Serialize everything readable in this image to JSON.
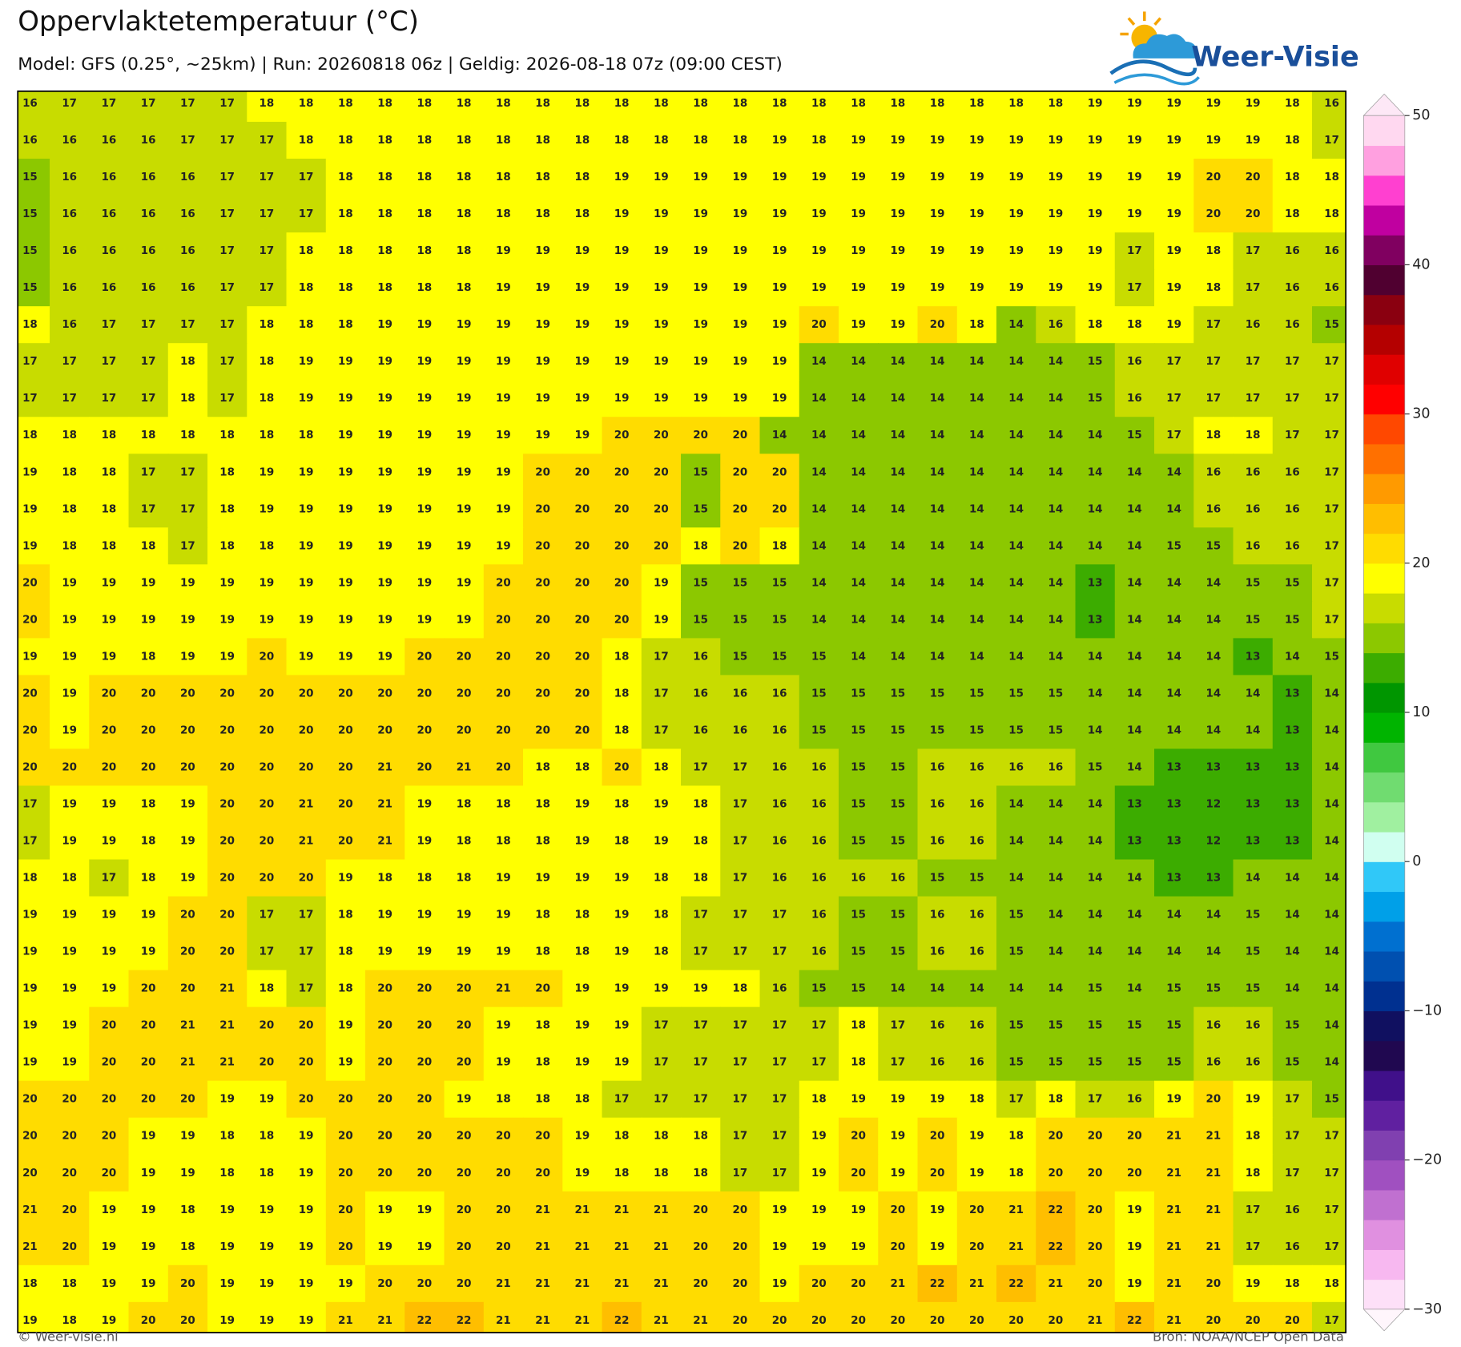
{
  "header": {
    "title": "Oppervlaktetemperatuur (°C)",
    "subtitle": "Model: GFS (0.25°, ~25km)  |  Run: 20260818 06z  |  Geldig: 2026-08-18 07z (09:00 CEST)"
  },
  "logo": {
    "text": "Weer-Visie"
  },
  "grid": {
    "rows": [
      [
        16,
        17,
        17,
        17,
        17,
        17,
        18,
        18,
        18,
        18,
        18,
        18,
        18,
        18,
        18,
        18,
        18,
        18,
        18,
        18,
        18,
        18,
        18,
        18,
        18,
        18,
        18,
        19,
        19,
        19,
        19,
        19,
        18,
        16
      ],
      [
        16,
        16,
        16,
        16,
        17,
        17,
        17,
        18,
        18,
        18,
        18,
        18,
        18,
        18,
        18,
        18,
        18,
        18,
        18,
        19,
        18,
        19,
        19,
        19,
        19,
        19,
        19,
        19,
        19,
        19,
        19,
        19,
        18,
        17
      ],
      [
        15,
        16,
        16,
        16,
        16,
        17,
        17,
        17,
        18,
        18,
        18,
        18,
        18,
        18,
        18,
        19,
        19,
        19,
        19,
        19,
        19,
        19,
        19,
        19,
        19,
        19,
        19,
        19,
        19,
        19,
        20,
        20,
        18,
        18
      ],
      [
        15,
        16,
        16,
        16,
        16,
        17,
        17,
        17,
        18,
        18,
        18,
        18,
        18,
        18,
        18,
        19,
        19,
        19,
        19,
        19,
        19,
        19,
        19,
        19,
        19,
        19,
        19,
        19,
        19,
        19,
        20,
        20,
        18,
        18
      ],
      [
        15,
        16,
        16,
        16,
        16,
        17,
        17,
        18,
        18,
        18,
        18,
        18,
        19,
        19,
        19,
        19,
        19,
        19,
        19,
        19,
        19,
        19,
        19,
        19,
        19,
        19,
        19,
        19,
        17,
        19,
        18,
        17,
        16,
        16
      ],
      [
        15,
        16,
        16,
        16,
        16,
        17,
        17,
        18,
        18,
        18,
        18,
        18,
        19,
        19,
        19,
        19,
        19,
        19,
        19,
        19,
        19,
        19,
        19,
        19,
        19,
        19,
        19,
        19,
        17,
        19,
        18,
        17,
        16,
        16
      ],
      [
        18,
        16,
        17,
        17,
        17,
        17,
        18,
        18,
        18,
        19,
        19,
        19,
        19,
        19,
        19,
        19,
        19,
        19,
        19,
        19,
        20,
        19,
        19,
        20,
        18,
        14,
        16,
        18,
        18,
        19,
        17,
        16,
        16,
        15
      ],
      [
        17,
        17,
        17,
        17,
        18,
        17,
        18,
        19,
        19,
        19,
        19,
        19,
        19,
        19,
        19,
        19,
        19,
        19,
        19,
        19,
        14,
        14,
        14,
        14,
        14,
        14,
        14,
        15,
        16,
        17,
        17,
        17,
        17,
        17
      ],
      [
        17,
        17,
        17,
        17,
        18,
        17,
        18,
        19,
        19,
        19,
        19,
        19,
        19,
        19,
        19,
        19,
        19,
        19,
        19,
        19,
        14,
        14,
        14,
        14,
        14,
        14,
        14,
        15,
        16,
        17,
        17,
        17,
        17,
        17
      ],
      [
        18,
        18,
        18,
        18,
        18,
        18,
        18,
        18,
        19,
        19,
        19,
        19,
        19,
        19,
        19,
        20,
        20,
        20,
        20,
        14,
        14,
        14,
        14,
        14,
        14,
        14,
        14,
        14,
        15,
        17,
        18,
        18,
        17,
        17
      ],
      [
        19,
        18,
        18,
        17,
        17,
        18,
        19,
        19,
        19,
        19,
        19,
        19,
        19,
        20,
        20,
        20,
        20,
        15,
        20,
        20,
        14,
        14,
        14,
        14,
        14,
        14,
        14,
        14,
        14,
        14,
        16,
        16,
        16,
        17
      ],
      [
        19,
        18,
        18,
        17,
        17,
        18,
        19,
        19,
        19,
        19,
        19,
        19,
        19,
        20,
        20,
        20,
        20,
        15,
        20,
        20,
        14,
        14,
        14,
        14,
        14,
        14,
        14,
        14,
        14,
        14,
        16,
        16,
        16,
        17
      ],
      [
        19,
        18,
        18,
        18,
        17,
        18,
        18,
        19,
        19,
        19,
        19,
        19,
        19,
        20,
        20,
        20,
        20,
        18,
        20,
        18,
        14,
        14,
        14,
        14,
        14,
        14,
        14,
        14,
        14,
        15,
        15,
        16,
        16,
        17
      ],
      [
        20,
        19,
        19,
        19,
        19,
        19,
        19,
        19,
        19,
        19,
        19,
        19,
        20,
        20,
        20,
        20,
        19,
        15,
        15,
        15,
        14,
        14,
        14,
        14,
        14,
        14,
        14,
        13,
        14,
        14,
        14,
        15,
        15,
        17
      ],
      [
        20,
        19,
        19,
        19,
        19,
        19,
        19,
        19,
        19,
        19,
        19,
        19,
        20,
        20,
        20,
        20,
        19,
        15,
        15,
        15,
        14,
        14,
        14,
        14,
        14,
        14,
        14,
        13,
        14,
        14,
        14,
        15,
        15,
        17
      ],
      [
        19,
        19,
        19,
        18,
        19,
        19,
        20,
        19,
        19,
        19,
        20,
        20,
        20,
        20,
        20,
        18,
        17,
        16,
        15,
        15,
        15,
        14,
        14,
        14,
        14,
        14,
        14,
        14,
        14,
        14,
        14,
        13,
        14,
        15
      ],
      [
        20,
        19,
        20,
        20,
        20,
        20,
        20,
        20,
        20,
        20,
        20,
        20,
        20,
        20,
        20,
        18,
        17,
        16,
        16,
        16,
        15,
        15,
        15,
        15,
        15,
        15,
        15,
        14,
        14,
        14,
        14,
        14,
        13,
        14
      ],
      [
        20,
        19,
        20,
        20,
        20,
        20,
        20,
        20,
        20,
        20,
        20,
        20,
        20,
        20,
        20,
        18,
        17,
        16,
        16,
        16,
        15,
        15,
        15,
        15,
        15,
        15,
        15,
        14,
        14,
        14,
        14,
        14,
        13,
        14
      ],
      [
        20,
        20,
        20,
        20,
        20,
        20,
        20,
        20,
        20,
        21,
        20,
        21,
        20,
        18,
        18,
        20,
        18,
        17,
        17,
        16,
        16,
        15,
        15,
        16,
        16,
        16,
        16,
        15,
        14,
        13,
        13,
        13,
        13,
        14
      ],
      [
        17,
        19,
        19,
        18,
        19,
        20,
        20,
        21,
        20,
        21,
        19,
        18,
        18,
        18,
        19,
        18,
        19,
        18,
        17,
        16,
        16,
        15,
        15,
        16,
        16,
        14,
        14,
        14,
        13,
        13,
        12,
        13,
        13,
        14
      ],
      [
        17,
        19,
        19,
        18,
        19,
        20,
        20,
        21,
        20,
        21,
        19,
        18,
        18,
        18,
        19,
        18,
        19,
        18,
        17,
        16,
        16,
        15,
        15,
        16,
        16,
        14,
        14,
        14,
        13,
        13,
        12,
        13,
        13,
        14
      ],
      [
        18,
        18,
        17,
        18,
        19,
        20,
        20,
        20,
        19,
        18,
        18,
        18,
        19,
        19,
        19,
        19,
        18,
        18,
        17,
        16,
        16,
        16,
        16,
        15,
        15,
        14,
        14,
        14,
        14,
        13,
        13,
        14,
        14,
        14
      ],
      [
        19,
        19,
        19,
        19,
        20,
        20,
        17,
        17,
        18,
        19,
        19,
        19,
        19,
        18,
        18,
        19,
        18,
        17,
        17,
        17,
        16,
        15,
        15,
        16,
        16,
        15,
        14,
        14,
        14,
        14,
        14,
        15,
        14,
        14
      ],
      [
        19,
        19,
        19,
        19,
        20,
        20,
        17,
        17,
        18,
        19,
        19,
        19,
        19,
        18,
        18,
        19,
        18,
        17,
        17,
        17,
        16,
        15,
        15,
        16,
        16,
        15,
        14,
        14,
        14,
        14,
        14,
        15,
        14,
        14
      ],
      [
        19,
        19,
        19,
        20,
        20,
        21,
        18,
        17,
        18,
        20,
        20,
        20,
        21,
        20,
        19,
        19,
        19,
        19,
        18,
        16,
        15,
        15,
        14,
        14,
        14,
        14,
        14,
        15,
        14,
        15,
        15,
        15,
        14,
        14
      ],
      [
        19,
        19,
        20,
        20,
        21,
        21,
        20,
        20,
        19,
        20,
        20,
        20,
        19,
        18,
        19,
        19,
        17,
        17,
        17,
        17,
        17,
        18,
        17,
        16,
        16,
        15,
        15,
        15,
        15,
        15,
        16,
        16,
        15,
        14
      ],
      [
        19,
        19,
        20,
        20,
        21,
        21,
        20,
        20,
        19,
        20,
        20,
        20,
        19,
        18,
        19,
        19,
        17,
        17,
        17,
        17,
        17,
        18,
        17,
        16,
        16,
        15,
        15,
        15,
        15,
        15,
        16,
        16,
        15,
        14
      ],
      [
        20,
        20,
        20,
        20,
        20,
        19,
        19,
        20,
        20,
        20,
        20,
        19,
        18,
        18,
        18,
        17,
        17,
        17,
        17,
        17,
        18,
        19,
        19,
        19,
        18,
        17,
        18,
        17,
        16,
        19,
        20,
        19,
        17,
        15
      ],
      [
        20,
        20,
        20,
        19,
        19,
        18,
        18,
        19,
        20,
        20,
        20,
        20,
        20,
        20,
        19,
        18,
        18,
        18,
        17,
        17,
        19,
        20,
        19,
        20,
        19,
        18,
        20,
        20,
        20,
        21,
        21,
        18,
        17,
        17
      ],
      [
        20,
        20,
        20,
        19,
        19,
        18,
        18,
        19,
        20,
        20,
        20,
        20,
        20,
        20,
        19,
        18,
        18,
        18,
        17,
        17,
        19,
        20,
        19,
        20,
        19,
        18,
        20,
        20,
        20,
        21,
        21,
        18,
        17,
        17
      ],
      [
        21,
        20,
        19,
        19,
        18,
        19,
        19,
        19,
        20,
        19,
        19,
        20,
        20,
        21,
        21,
        21,
        21,
        20,
        20,
        19,
        19,
        19,
        20,
        19,
        20,
        21,
        22,
        20,
        19,
        21,
        21,
        17,
        16,
        17
      ],
      [
        21,
        20,
        19,
        19,
        18,
        19,
        19,
        19,
        20,
        19,
        19,
        20,
        20,
        21,
        21,
        21,
        21,
        20,
        20,
        19,
        19,
        19,
        20,
        19,
        20,
        21,
        22,
        20,
        19,
        21,
        21,
        17,
        16,
        17
      ],
      [
        18,
        18,
        19,
        19,
        20,
        19,
        19,
        19,
        19,
        20,
        20,
        20,
        21,
        21,
        21,
        21,
        21,
        20,
        20,
        19,
        20,
        20,
        21,
        22,
        21,
        22,
        21,
        20,
        19,
        21,
        20,
        19,
        18,
        18
      ],
      [
        19,
        18,
        19,
        20,
        20,
        19,
        19,
        19,
        21,
        21,
        22,
        22,
        21,
        21,
        21,
        22,
        21,
        21,
        20,
        20,
        20,
        20,
        20,
        20,
        20,
        20,
        20,
        21,
        22,
        21,
        20,
        20,
        20,
        17
      ]
    ]
  },
  "colorbar": {
    "lim": [
      -30,
      50
    ],
    "ticks": [
      {
        "value": -30,
        "label": "−30"
      },
      {
        "value": -20,
        "label": "−20"
      },
      {
        "value": -10,
        "label": "−10"
      },
      0,
      10,
      20,
      30,
      40,
      50
    ],
    "colors": [
      "#fde0f8",
      "#f7b8f0",
      "#e090e0",
      "#c070d0",
      "#a050c0",
      "#8040b0",
      "#6020a0",
      "#40108a",
      "#200850",
      "#101060",
      "#003090",
      "#0050b0",
      "#0070d0",
      "#00a0e8",
      "#30c8f8",
      "#d0fff0",
      "#a0f0a0",
      "#70dc70",
      "#40c840",
      "#00b400",
      "#009600",
      "#3cac00",
      "#8cc800",
      "#c8dc00",
      "#ffff00",
      "#ffdc00",
      "#ffbe00",
      "#ff9a00",
      "#ff7000",
      "#ff4800",
      "#ff0000",
      "#e00000",
      "#b40000",
      "#8a0010",
      "#500030",
      "#800060",
      "#c000a0",
      "#ff40d0",
      "#ffa0e0",
      "#ffd8f0"
    ]
  },
  "footer": {
    "left": "© Weer-visie.nl",
    "right": "Bron: NOAA/NCEP Open Data"
  }
}
